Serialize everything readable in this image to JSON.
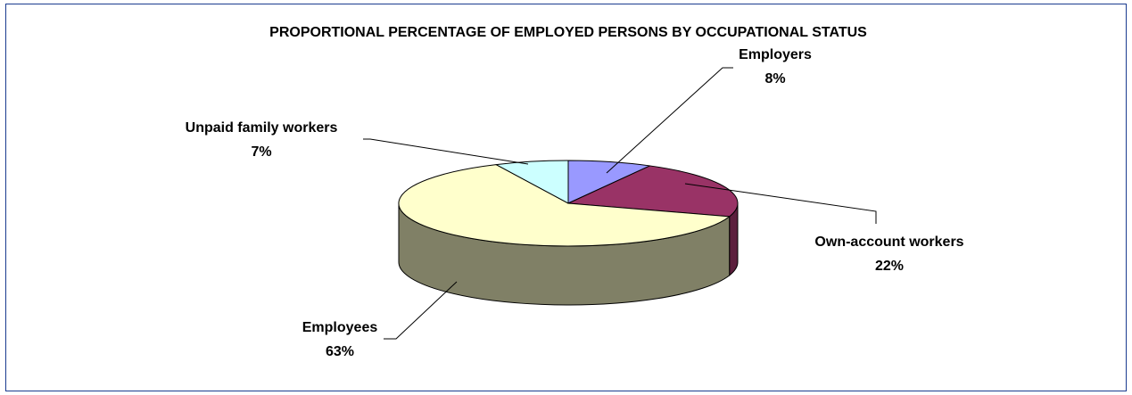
{
  "chart_data": {
    "type": "pie",
    "title": "PROPORTIONAL PERCENTAGE OF EMPLOYED PERSONS BY OCCUPATIONAL STATUS",
    "categories": [
      "Employers",
      "Own-account workers",
      "Employees",
      "Unpaid family workers"
    ],
    "values": [
      8,
      22,
      63,
      7
    ],
    "labels": [
      "8%",
      "22%",
      "63%",
      "7%"
    ],
    "colors": [
      "#9999ff",
      "#993366",
      "#ffffcc",
      "#ccffff"
    ],
    "side_colors": [
      "#66669a",
      "#5c1f3d",
      "#808066",
      "#7a9999"
    ],
    "style": "3d",
    "legend": "none"
  },
  "frame": {
    "border_color": "#1a3b8f"
  }
}
